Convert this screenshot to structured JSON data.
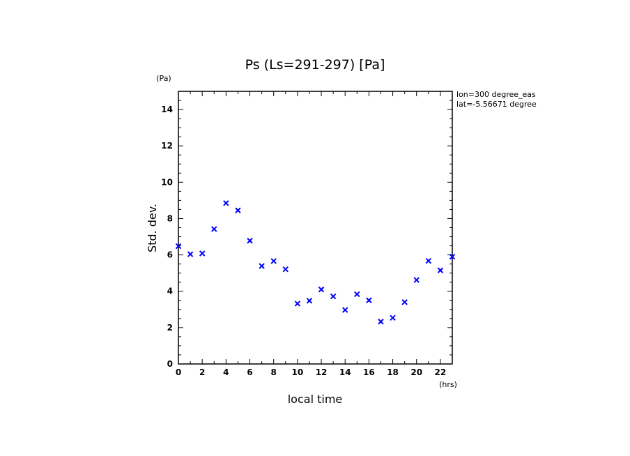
{
  "chart_data": {
    "type": "scatter",
    "title": "Ps (Ls=291-297) [Pa]",
    "xlabel": "local time",
    "ylabel": "Std. dev.",
    "x_unit": "(hrs)",
    "y_unit": "(Pa)",
    "xlim": [
      0,
      23
    ],
    "ylim": [
      0,
      15
    ],
    "x_ticks": [
      0,
      2,
      4,
      6,
      8,
      10,
      12,
      14,
      16,
      18,
      20,
      22
    ],
    "y_ticks": [
      0,
      2,
      4,
      6,
      8,
      10,
      12,
      14
    ],
    "grid": false,
    "marker": "x",
    "marker_color": "#0000ff",
    "annotations": [
      "lon=300 degree_eas",
      "lat=-5.56671 degree"
    ],
    "series": [
      {
        "x": [
          0,
          1,
          2,
          3,
          4,
          5,
          6,
          7,
          8,
          9,
          10,
          11,
          12,
          13,
          14,
          15,
          16,
          17,
          18,
          19,
          20,
          21,
          22,
          23
        ],
        "values": [
          6.48,
          6.04,
          6.08,
          7.42,
          8.85,
          8.45,
          6.78,
          5.39,
          5.66,
          5.21,
          3.32,
          3.48,
          4.1,
          3.72,
          2.97,
          3.84,
          3.5,
          2.33,
          2.54,
          3.4,
          4.62,
          5.67,
          5.15,
          5.9
        ]
      }
    ]
  }
}
